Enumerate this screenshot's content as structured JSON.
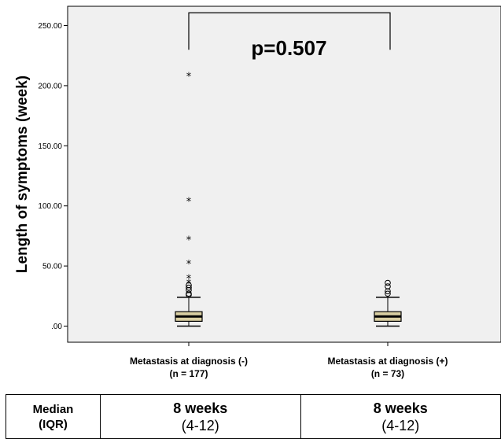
{
  "chart_data": {
    "type": "box",
    "ylabel": "Length of symptoms (week)",
    "ylim": [
      0,
      260
    ],
    "yticks": [
      0,
      50,
      100,
      150,
      200,
      250
    ],
    "ytick_labels": [
      ".00",
      "50.00",
      "100.00",
      "150.00",
      "200.00",
      "250.00"
    ],
    "categories": [
      {
        "label": "Metastasis at diagnosis (-)",
        "n_label": "(n = 177)"
      },
      {
        "label": "Metastasis at diagnosis (+)",
        "n_label": "(n = 73)"
      }
    ],
    "series": [
      {
        "whisker_low": 0,
        "q1": 4,
        "median": 8,
        "q3": 12,
        "whisker_high": 24,
        "outliers": [
          26,
          27,
          30,
          32,
          34
        ],
        "extremes": [
          36,
          40,
          52,
          72,
          104,
          208
        ]
      },
      {
        "whisker_low": 0,
        "q1": 4,
        "median": 8,
        "q3": 12,
        "whisker_high": 24,
        "outliers": [
          27,
          29,
          33,
          36
        ],
        "extremes": []
      }
    ],
    "annotation": {
      "text": "p=0.507",
      "bracket_y": 260
    },
    "box_color": "#d9cfa2",
    "plot_background": "#f0f0f0"
  },
  "median_table": {
    "row_header_line1": "Median",
    "row_header_line2": "(IQR)",
    "cells": [
      {
        "weeks": "8 weeks",
        "iqr": "(4-12)"
      },
      {
        "weeks": "8 weeks",
        "iqr": "(4-12)"
      }
    ]
  }
}
